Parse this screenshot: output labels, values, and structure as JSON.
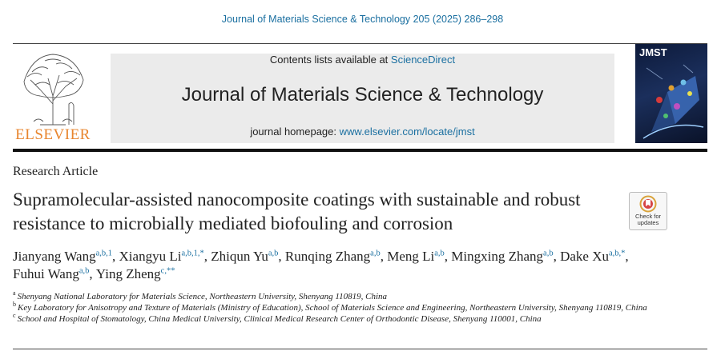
{
  "header": {
    "citation": "Journal of Materials Science & Technology 205 (2025) 286–298",
    "publisher_logo_text": "ELSEVIER",
    "contents_prefix": "Contents lists available at ",
    "contents_link": "ScienceDirect",
    "journal_title": "Journal of Materials Science & Technology",
    "homepage_prefix": "journal homepage: ",
    "homepage_link": "www.elsevier.com/locate/jmst",
    "cover_label": "JMST"
  },
  "article": {
    "type": "Research Article",
    "title": "Supramolecular-assisted nanocomposite coatings with sustainable and robust resistance to microbially mediated biofouling and corrosion",
    "check_updates_label": "Check for updates"
  },
  "authors": [
    {
      "name": "Jianyang Wang",
      "refs": "a,b,1",
      "sep": ", "
    },
    {
      "name": "Xiangyu Li",
      "refs": "a,b,1,*",
      "sep": ", "
    },
    {
      "name": "Zhiqun Yu",
      "refs": "a,b",
      "sep": ", "
    },
    {
      "name": "Runqing Zhang",
      "refs": "a,b",
      "sep": ", "
    },
    {
      "name": "Meng Li",
      "refs": "a,b",
      "sep": ", "
    },
    {
      "name": "Mingxing Zhang",
      "refs": "a,b",
      "sep": ", "
    },
    {
      "name": "Dake Xu",
      "refs": "a,b,*",
      "sep": ", "
    },
    {
      "name": "Fuhui Wang",
      "refs": "a,b",
      "sep": ", "
    },
    {
      "name": "Ying Zheng",
      "refs": "c,**",
      "sep": ""
    }
  ],
  "affiliations": [
    {
      "mark": "a",
      "text": "Shenyang National Laboratory for Materials Science, Northeastern University, Shenyang 110819, China"
    },
    {
      "mark": "b",
      "text": "Key Laboratory for Anisotropy and Texture of Materials (Ministry of Education), School of Materials Science and Engineering, Northeastern University, Shenyang 110819, China"
    },
    {
      "mark": "c",
      "text": "School and Hospital of Stomatology, China Medical University, Clinical Medical Research Center of Orthodontic Disease, Shenyang 110001, China"
    }
  ],
  "colors": {
    "link": "#1a6fa0",
    "elsevier_orange": "#e8852e",
    "banner_gray": "#ebebeb"
  }
}
